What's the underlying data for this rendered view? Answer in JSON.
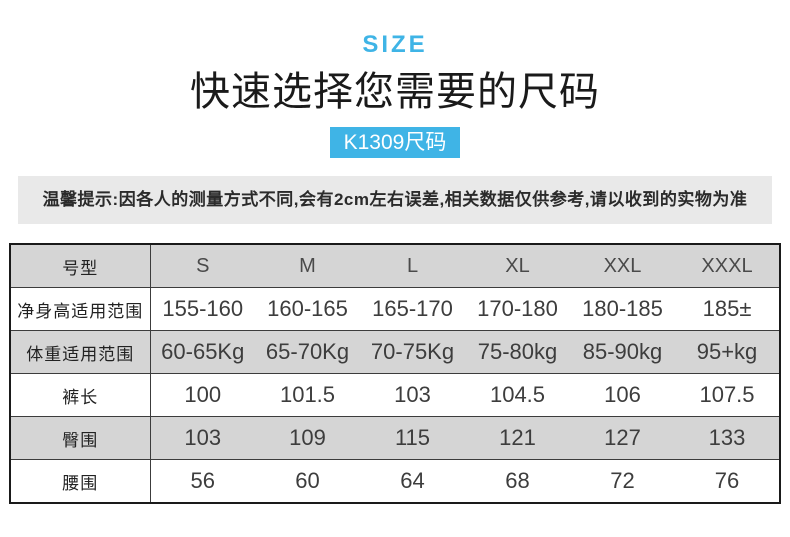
{
  "header": {
    "eyebrow": "SIZE",
    "title": "快速选择您需要的尺码",
    "badge": "K1309尺码"
  },
  "notice": {
    "text": "温馨提示:因各人的测量方式不同,会有2cm左右误差,相关数据仅供参考,请以收到的实物为准"
  },
  "size_table": {
    "columns": [
      "号型",
      "S",
      "M",
      "L",
      "XL",
      "XXL",
      "XXXL"
    ],
    "rows": [
      {
        "label": "净身高适用范围",
        "values": [
          "155-160",
          "160-165",
          "165-170",
          "170-180",
          "180-185",
          "185±"
        ]
      },
      {
        "label": "体重适用范围",
        "values": [
          "60-65Kg",
          "65-70Kg",
          "70-75Kg",
          "75-80kg",
          "85-90kg",
          "95+kg"
        ]
      },
      {
        "label": "裤长",
        "values": [
          "100",
          "101.5",
          "103",
          "104.5",
          "106",
          "107.5"
        ]
      },
      {
        "label": "臀围",
        "values": [
          "103",
          "109",
          "115",
          "121",
          "127",
          "133"
        ]
      },
      {
        "label": "腰围",
        "values": [
          "56",
          "60",
          "64",
          "68",
          "72",
          "76"
        ]
      }
    ]
  },
  "colors": {
    "accent_blue": "#3fb4e6",
    "row_gray": "#d5d5d5",
    "notice_gray": "#e9e9e9",
    "border_dark": "#1a1a1a"
  }
}
